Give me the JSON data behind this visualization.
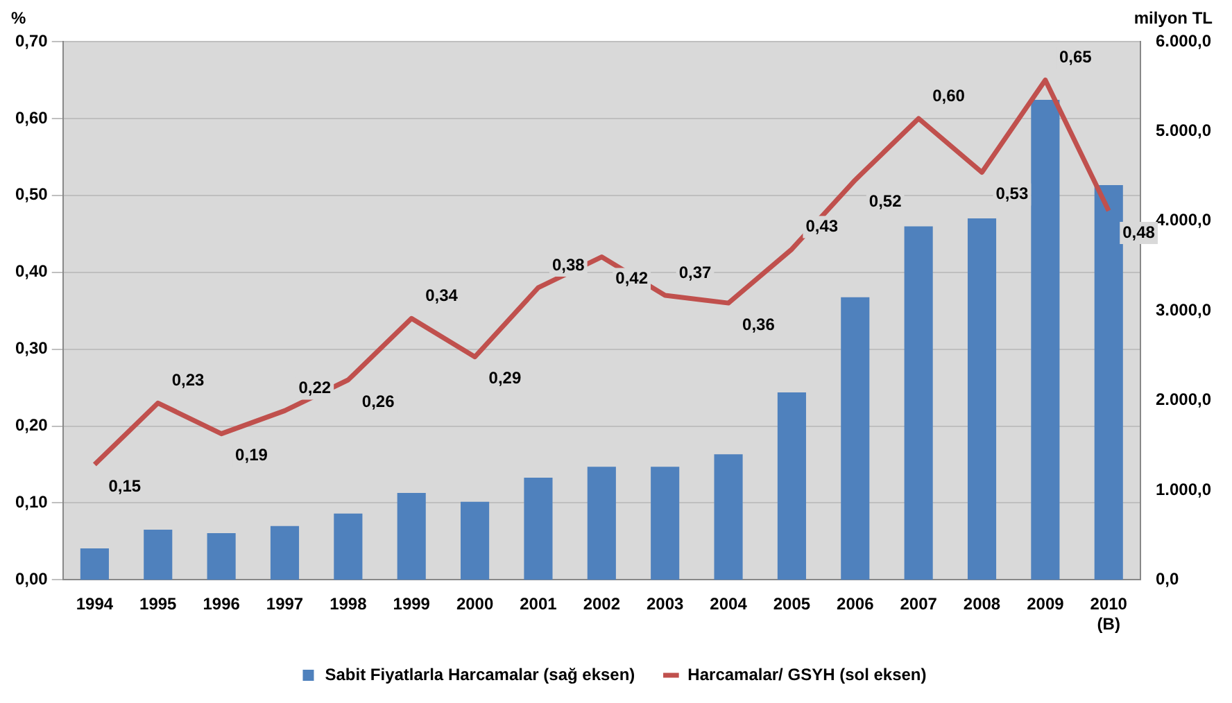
{
  "chart_data": {
    "type": "bar",
    "ylabel": "%",
    "y2label": "milyon TL",
    "categories": [
      "1994",
      "1995",
      "1996",
      "1997",
      "1998",
      "1999",
      "2000",
      "2001",
      "2002",
      "2003",
      "2004",
      "2005",
      "2006",
      "2007",
      "2008",
      "2009",
      "2010\n(B)"
    ],
    "series": [
      {
        "name": "Sabit Fiyatlarla Harcamalar (sağ eksen)",
        "axis": "y2",
        "color": "#4f81bd",
        "values": [
          350,
          560,
          520,
          600,
          740,
          970,
          870,
          1140,
          1260,
          1260,
          1400,
          2090,
          3150,
          3940,
          4030,
          5350,
          4400
        ]
      },
      {
        "name": "Harcamalar/ GSYH (sol eksen)",
        "type": "line",
        "color": "#c0504d",
        "values": [
          0.15,
          0.23,
          0.19,
          0.22,
          0.26,
          0.34,
          0.29,
          0.38,
          0.42,
          0.37,
          0.36,
          0.43,
          0.52,
          0.6,
          0.53,
          0.65,
          0.48
        ],
        "value_labels": [
          "0,15",
          "0,23",
          "0,19",
          "0,22",
          "0,26",
          "0,34",
          "0,29",
          "0,38",
          "0,42",
          "0,37",
          "0,36",
          "0,43",
          "0,52",
          "0,60",
          "0,53",
          "0,65",
          "0,48"
        ]
      }
    ],
    "ylim": [
      0,
      0.7
    ],
    "yticks": [
      {
        "value": 0,
        "label": "0,00"
      },
      {
        "value": 0.1,
        "label": "0,10"
      },
      {
        "value": 0.2,
        "label": "0,20"
      },
      {
        "value": 0.3,
        "label": "0,30"
      },
      {
        "value": 0.4,
        "label": "0,40"
      },
      {
        "value": 0.5,
        "label": "0,50"
      },
      {
        "value": 0.6,
        "label": "0,60"
      },
      {
        "value": 0.7,
        "label": "0,70"
      }
    ],
    "y2lim": [
      0,
      6000
    ],
    "y2ticks": [
      {
        "value": 0,
        "label": "0,0"
      },
      {
        "value": 1000,
        "label": "1.000,0"
      },
      {
        "value": 2000,
        "label": "2.000,0"
      },
      {
        "value": 3000,
        "label": "3.000,0"
      },
      {
        "value": 4000,
        "label": "4.000,0"
      },
      {
        "value": 5000,
        "label": "5.000,0"
      },
      {
        "value": 6000,
        "label": "6.000,0"
      }
    ],
    "grid": "y",
    "legend": "bottom",
    "marker": "none"
  }
}
